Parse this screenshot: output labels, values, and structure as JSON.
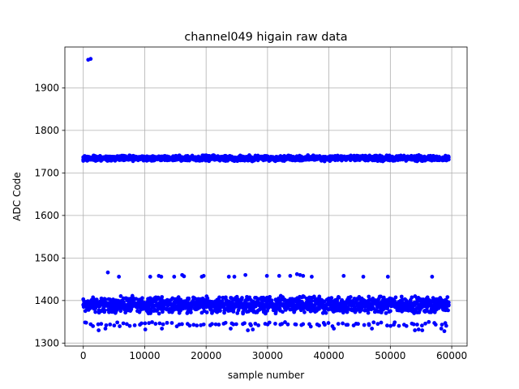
{
  "chart_data": {
    "type": "scatter",
    "title": "channel049 higain raw data",
    "xlabel": "sample number",
    "ylabel": "ADC Code",
    "xlim": [
      -3000,
      62500
    ],
    "ylim": [
      1293,
      1996
    ],
    "x_ticks": [
      0,
      10000,
      20000,
      30000,
      40000,
      50000,
      60000
    ],
    "x_tick_labels": [
      "0",
      "10000",
      "20000",
      "30000",
      "40000",
      "50000",
      "60000"
    ],
    "y_ticks": [
      1300,
      1400,
      1500,
      1600,
      1700,
      1800,
      1900
    ],
    "y_tick_labels": [
      "1300",
      "1400",
      "1500",
      "1600",
      "1700",
      "1800",
      "1900"
    ],
    "grid": true,
    "marker_color": "#0000ff",
    "series": [
      {
        "name": "",
        "bands": [
          {
            "x_range": [
              0,
              59500
            ],
            "y_range": [
              1368,
              1412
            ],
            "density": "dense"
          },
          {
            "x_range": [
              0,
              59500
            ],
            "y_range": [
              1727,
              1742
            ],
            "density": "dense"
          },
          {
            "x_range": [
              0,
              59500
            ],
            "y_range": [
              1338,
              1350
            ],
            "density": "sparse"
          }
        ],
        "points": [
          {
            "x": 800,
            "y": 1966
          },
          {
            "x": 1200,
            "y": 1968
          },
          {
            "x": 4000,
            "y": 1466
          },
          {
            "x": 5800,
            "y": 1456
          },
          {
            "x": 10900,
            "y": 1456
          },
          {
            "x": 12300,
            "y": 1458
          },
          {
            "x": 12700,
            "y": 1456
          },
          {
            "x": 14800,
            "y": 1456
          },
          {
            "x": 16100,
            "y": 1460
          },
          {
            "x": 16400,
            "y": 1457
          },
          {
            "x": 19300,
            "y": 1456
          },
          {
            "x": 19600,
            "y": 1458
          },
          {
            "x": 23700,
            "y": 1456
          },
          {
            "x": 24600,
            "y": 1456
          },
          {
            "x": 26400,
            "y": 1460
          },
          {
            "x": 29900,
            "y": 1458
          },
          {
            "x": 31900,
            "y": 1458
          },
          {
            "x": 33700,
            "y": 1458
          },
          {
            "x": 34800,
            "y": 1462
          },
          {
            "x": 35300,
            "y": 1460
          },
          {
            "x": 35800,
            "y": 1458
          },
          {
            "x": 37200,
            "y": 1456
          },
          {
            "x": 42400,
            "y": 1458
          },
          {
            "x": 45600,
            "y": 1456
          },
          {
            "x": 49600,
            "y": 1456
          },
          {
            "x": 56800,
            "y": 1456
          },
          {
            "x": 2500,
            "y": 1330
          },
          {
            "x": 3600,
            "y": 1334
          },
          {
            "x": 10100,
            "y": 1332
          },
          {
            "x": 12800,
            "y": 1334
          },
          {
            "x": 24000,
            "y": 1334
          },
          {
            "x": 26800,
            "y": 1330
          },
          {
            "x": 27600,
            "y": 1332
          },
          {
            "x": 40800,
            "y": 1334
          },
          {
            "x": 47000,
            "y": 1334
          },
          {
            "x": 54000,
            "y": 1330
          },
          {
            "x": 54600,
            "y": 1332
          },
          {
            "x": 55200,
            "y": 1330
          },
          {
            "x": 58300,
            "y": 1334
          },
          {
            "x": 58800,
            "y": 1328
          }
        ]
      }
    ]
  }
}
